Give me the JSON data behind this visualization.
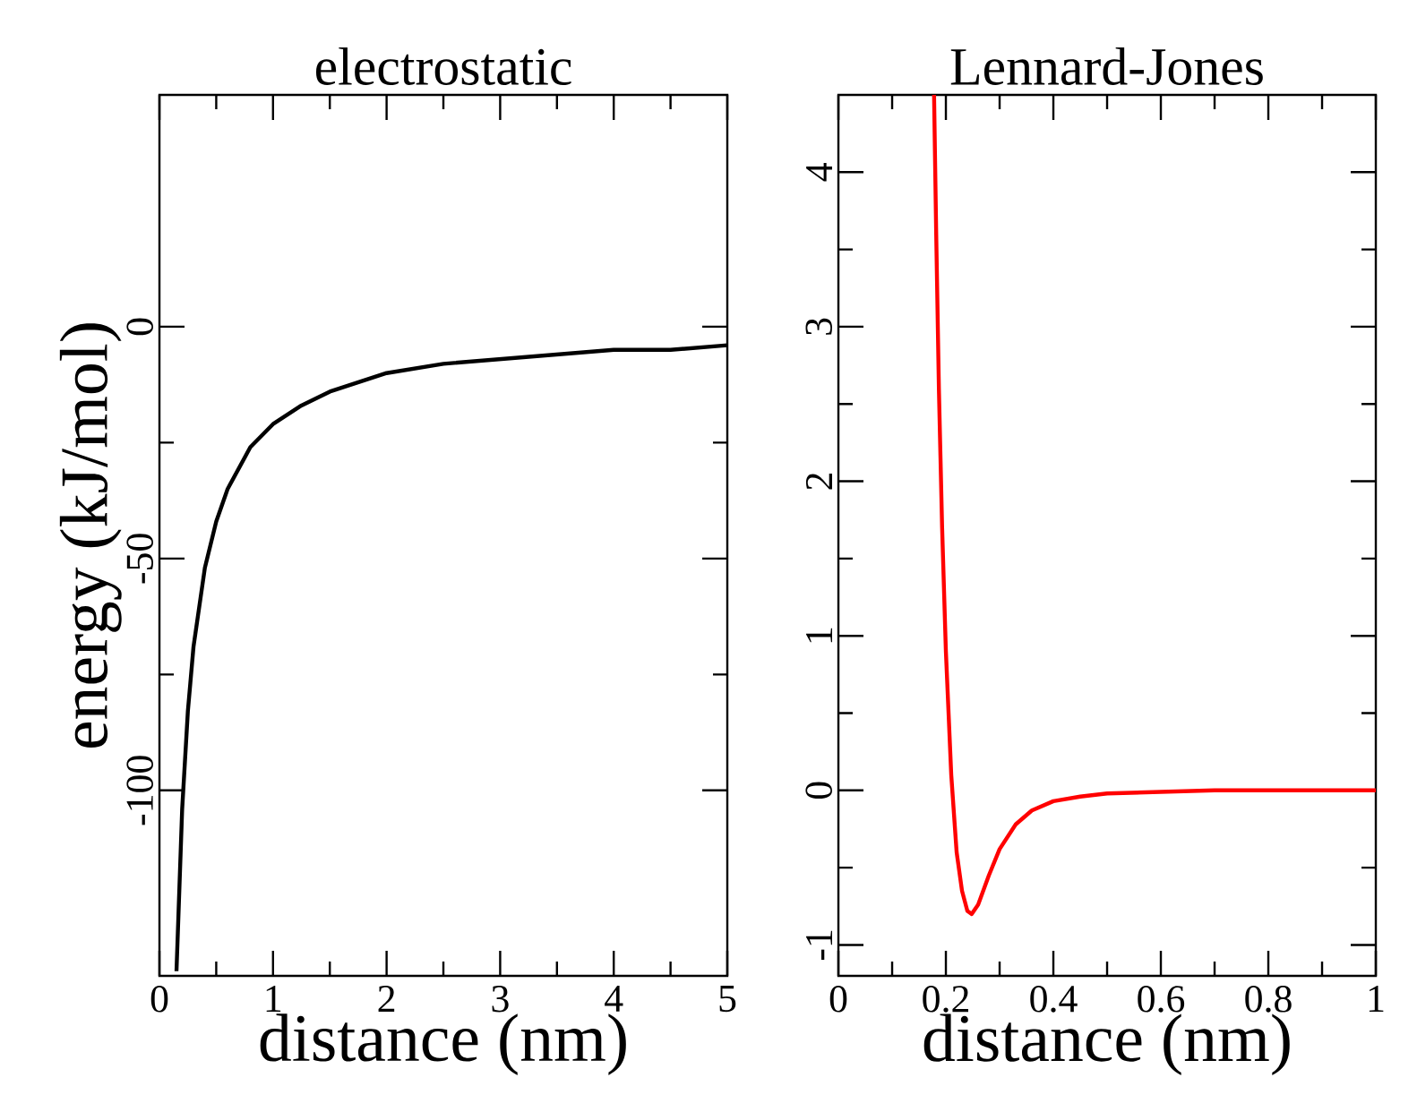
{
  "chart_data": [
    {
      "type": "line",
      "title": "electrostatic",
      "xlabel": "distance (nm)",
      "ylabel": "energy (kJ/mol)",
      "xlim": [
        0,
        5
      ],
      "ylim": [
        -140,
        50
      ],
      "xticks": [
        0,
        1,
        2,
        3,
        4,
        5
      ],
      "yticks": [
        -100,
        -50,
        0
      ],
      "marker": "none",
      "line_style": "solid",
      "series": [
        {
          "color": "#000000",
          "x": [
            0.15,
            0.2,
            0.25,
            0.3,
            0.4,
            0.5,
            0.6,
            0.8,
            1,
            1.25,
            1.5,
            2,
            2.5,
            3,
            3.5,
            4,
            4.5,
            5
          ],
          "values": [
            -139,
            -104,
            -83,
            -69,
            -52,
            -42,
            -35,
            -26,
            -21,
            -17,
            -14,
            -10,
            -8,
            -7,
            -6,
            -5,
            -5,
            -4
          ]
        }
      ]
    },
    {
      "type": "line",
      "title": "Lennard-Jones",
      "xlabel": "distance (nm)",
      "xlim": [
        0,
        1
      ],
      "ylim": [
        -1.2,
        4.5
      ],
      "xticks": [
        0,
        0.2,
        0.4,
        0.6,
        0.8,
        1
      ],
      "yticks": [
        -1,
        0,
        1,
        2,
        3,
        4
      ],
      "marker": "none",
      "line_style": "solid",
      "series": [
        {
          "color": "#ff0000",
          "x": [
            0.178,
            0.182,
            0.187,
            0.193,
            0.2,
            0.21,
            0.22,
            0.23,
            0.24,
            0.248,
            0.26,
            0.28,
            0.3,
            0.33,
            0.36,
            0.4,
            0.45,
            0.5,
            0.6,
            0.7,
            1.0
          ],
          "values": [
            4.5,
            3.6,
            2.6,
            1.7,
            0.9,
            0.1,
            -0.4,
            -0.65,
            -0.78,
            -0.8,
            -0.74,
            -0.55,
            -0.38,
            -0.22,
            -0.13,
            -0.07,
            -0.04,
            -0.02,
            -0.01,
            0,
            0
          ]
        }
      ]
    }
  ]
}
